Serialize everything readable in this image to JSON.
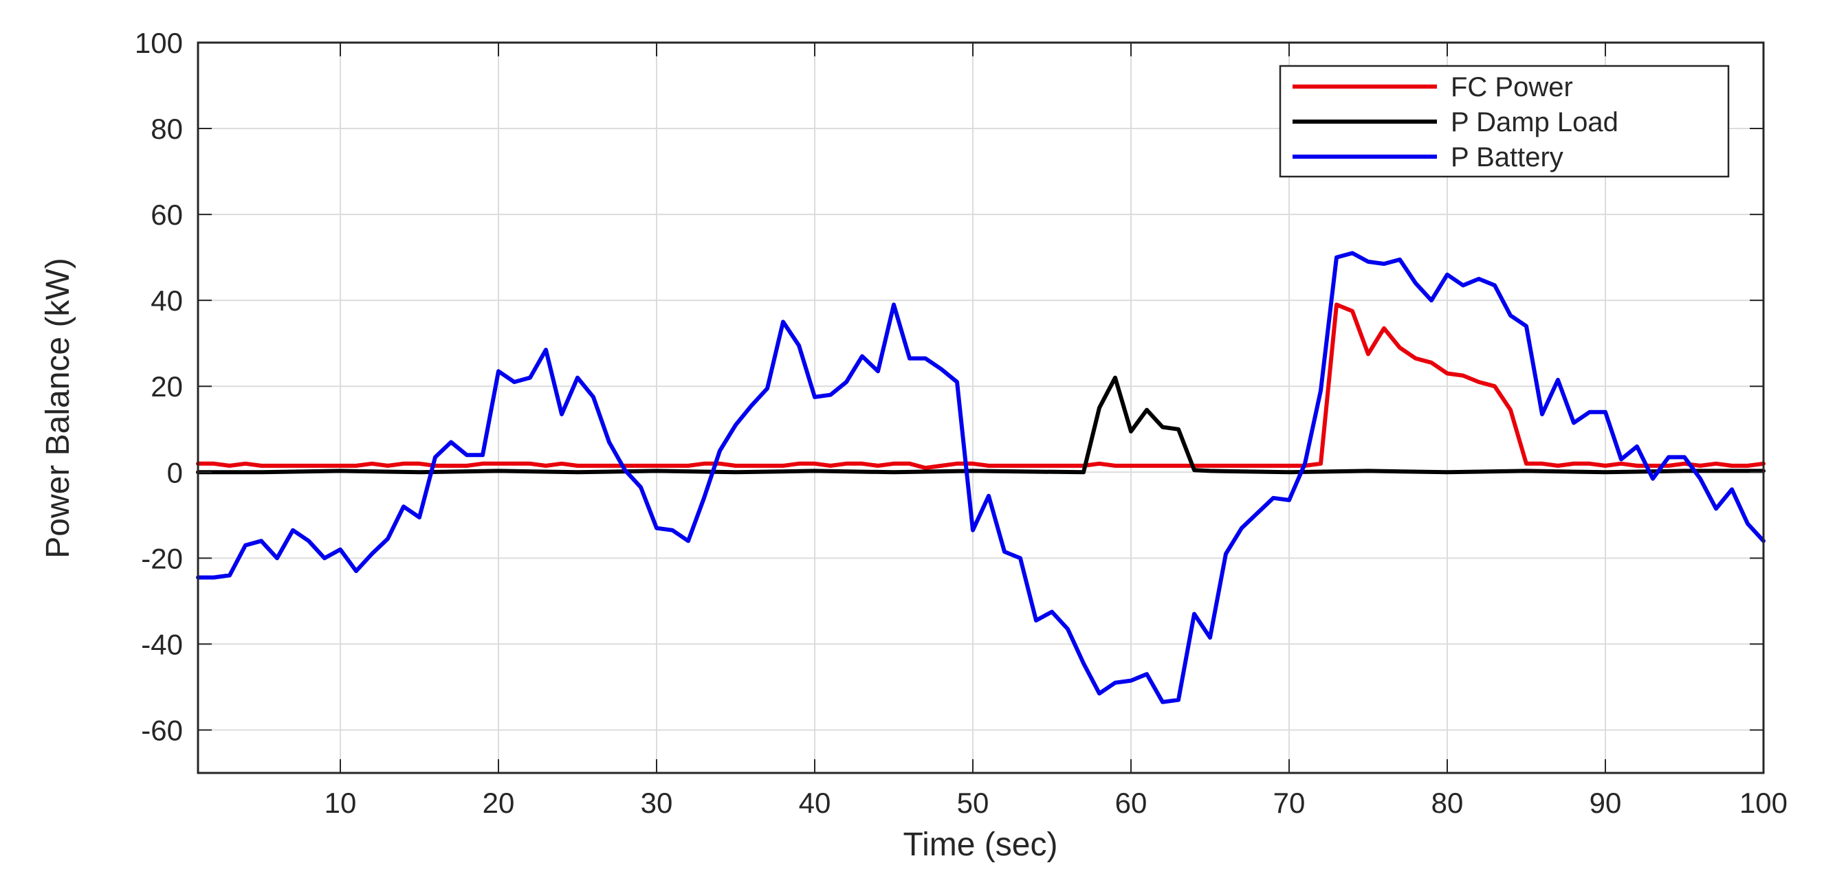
{
  "chart_data": {
    "type": "line",
    "title": "",
    "xlabel": "Time (sec)",
    "ylabel": "Power Balance (kW)",
    "xlim": [
      1,
      100
    ],
    "ylim": [
      -70,
      100
    ],
    "xticks": [
      10,
      20,
      30,
      40,
      50,
      60,
      70,
      80,
      90,
      100
    ],
    "xtick_labels": [
      "10",
      "20",
      "30",
      "40",
      "50",
      "60",
      "70",
      "80",
      "90",
      "100"
    ],
    "yticks": [
      -60,
      -40,
      -20,
      0,
      20,
      40,
      60,
      80,
      100
    ],
    "ytick_labels": [
      "-60",
      "-40",
      "-20",
      "0",
      "20",
      "40",
      "60",
      "80",
      "100"
    ],
    "grid": true,
    "legend_position": "top-right",
    "series": [
      {
        "name": "FC Power",
        "color": "#e8000b",
        "points": [
          [
            1,
            2
          ],
          [
            2,
            2
          ],
          [
            3,
            1.5
          ],
          [
            4,
            2
          ],
          [
            5,
            1.5
          ],
          [
            6,
            1.5
          ],
          [
            7,
            1.5
          ],
          [
            8,
            1.5
          ],
          [
            9,
            1.5
          ],
          [
            10,
            1.5
          ],
          [
            11,
            1.5
          ],
          [
            12,
            2
          ],
          [
            13,
            1.5
          ],
          [
            14,
            2
          ],
          [
            15,
            2
          ],
          [
            16,
            1.5
          ],
          [
            17,
            1.5
          ],
          [
            18,
            1.5
          ],
          [
            19,
            2
          ],
          [
            20,
            2
          ],
          [
            21,
            2
          ],
          [
            22,
            2
          ],
          [
            23,
            1.5
          ],
          [
            24,
            2
          ],
          [
            25,
            1.5
          ],
          [
            26,
            1.5
          ],
          [
            27,
            1.5
          ],
          [
            28,
            1.5
          ],
          [
            29,
            1.5
          ],
          [
            30,
            1.5
          ],
          [
            31,
            1.5
          ],
          [
            32,
            1.5
          ],
          [
            33,
            2
          ],
          [
            34,
            2
          ],
          [
            35,
            1.5
          ],
          [
            36,
            1.5
          ],
          [
            37,
            1.5
          ],
          [
            38,
            1.5
          ],
          [
            39,
            2
          ],
          [
            40,
            2
          ],
          [
            41,
            1.5
          ],
          [
            42,
            2
          ],
          [
            43,
            2
          ],
          [
            44,
            1.5
          ],
          [
            45,
            2
          ],
          [
            46,
            2
          ],
          [
            47,
            1
          ],
          [
            48,
            1.5
          ],
          [
            49,
            2
          ],
          [
            50,
            2
          ],
          [
            51,
            1.5
          ],
          [
            52,
            1.5
          ],
          [
            53,
            1.5
          ],
          [
            54,
            1.5
          ],
          [
            55,
            1.5
          ],
          [
            56,
            1.5
          ],
          [
            57,
            1.5
          ],
          [
            58,
            2
          ],
          [
            59,
            1.5
          ],
          [
            60,
            1.5
          ],
          [
            61,
            1.5
          ],
          [
            62,
            1.5
          ],
          [
            63,
            1.5
          ],
          [
            64,
            1.5
          ],
          [
            65,
            1.5
          ],
          [
            66,
            1.5
          ],
          [
            67,
            1.5
          ],
          [
            68,
            1.5
          ],
          [
            69,
            1.5
          ],
          [
            70,
            1.5
          ],
          [
            71,
            1.5
          ],
          [
            72,
            2
          ],
          [
            73,
            39
          ],
          [
            74,
            37.5
          ],
          [
            75,
            27.5
          ],
          [
            76,
            33.5
          ],
          [
            77,
            29
          ],
          [
            78,
            26.5
          ],
          [
            79,
            25.5
          ],
          [
            80,
            23
          ],
          [
            81,
            22.5
          ],
          [
            82,
            21
          ],
          [
            83,
            20
          ],
          [
            84,
            14.5
          ],
          [
            85,
            2
          ],
          [
            86,
            2
          ],
          [
            87,
            1.5
          ],
          [
            88,
            2
          ],
          [
            89,
            2
          ],
          [
            90,
            1.5
          ],
          [
            91,
            2
          ],
          [
            92,
            1.5
          ],
          [
            93,
            1.5
          ],
          [
            94,
            1.5
          ],
          [
            95,
            2
          ],
          [
            96,
            1.5
          ],
          [
            97,
            2
          ],
          [
            98,
            1.5
          ],
          [
            99,
            1.5
          ],
          [
            100,
            2
          ]
        ]
      },
      {
        "name": "P Damp Load",
        "color": "#000000",
        "points": [
          [
            1,
            0
          ],
          [
            5,
            0
          ],
          [
            10,
            0.3
          ],
          [
            15,
            0
          ],
          [
            20,
            0.3
          ],
          [
            25,
            0
          ],
          [
            30,
            0.3
          ],
          [
            35,
            0
          ],
          [
            40,
            0.3
          ],
          [
            45,
            0
          ],
          [
            50,
            0.3
          ],
          [
            57,
            0
          ],
          [
            58,
            15
          ],
          [
            59,
            22
          ],
          [
            60,
            9.5
          ],
          [
            61,
            14.5
          ],
          [
            62,
            10.5
          ],
          [
            63,
            10
          ],
          [
            64,
            0.5
          ],
          [
            65,
            0.3
          ],
          [
            70,
            0
          ],
          [
            75,
            0.3
          ],
          [
            80,
            0
          ],
          [
            85,
            0.3
          ],
          [
            90,
            0
          ],
          [
            95,
            0.3
          ],
          [
            100,
            0.3
          ]
        ]
      },
      {
        "name": "P Battery",
        "color": "#0000ee",
        "points": [
          [
            1,
            -24.5
          ],
          [
            2,
            -24.5
          ],
          [
            3,
            -24
          ],
          [
            4,
            -17
          ],
          [
            5,
            -16
          ],
          [
            6,
            -20
          ],
          [
            7,
            -13.5
          ],
          [
            8,
            -16
          ],
          [
            9,
            -20
          ],
          [
            10,
            -18
          ],
          [
            11,
            -23
          ],
          [
            12,
            -19
          ],
          [
            13,
            -15.5
          ],
          [
            14,
            -8
          ],
          [
            15,
            -10.5
          ],
          [
            16,
            3.5
          ],
          [
            17,
            7
          ],
          [
            18,
            4
          ],
          [
            19,
            4
          ],
          [
            20,
            23.5
          ],
          [
            21,
            21
          ],
          [
            22,
            22
          ],
          [
            23,
            28.5
          ],
          [
            24,
            13.5
          ],
          [
            25,
            22
          ],
          [
            26,
            17.5
          ],
          [
            27,
            7
          ],
          [
            28,
            0.5
          ],
          [
            29,
            -3.5
          ],
          [
            30,
            -13
          ],
          [
            31,
            -13.5
          ],
          [
            32,
            -16
          ],
          [
            33,
            -6
          ],
          [
            34,
            5
          ],
          [
            35,
            11
          ],
          [
            36,
            15.5
          ],
          [
            37,
            19.5
          ],
          [
            38,
            35
          ],
          [
            39,
            29.5
          ],
          [
            40,
            17.5
          ],
          [
            41,
            18
          ],
          [
            42,
            21
          ],
          [
            43,
            27
          ],
          [
            44,
            23.5
          ],
          [
            45,
            39
          ],
          [
            46,
            26.5
          ],
          [
            47,
            26.5
          ],
          [
            48,
            24
          ],
          [
            49,
            21
          ],
          [
            50,
            -13.5
          ],
          [
            51,
            -5.5
          ],
          [
            52,
            -18.5
          ],
          [
            53,
            -20
          ],
          [
            54,
            -34.5
          ],
          [
            55,
            -32.5
          ],
          [
            56,
            -36.5
          ],
          [
            57,
            -44.5
          ],
          [
            58,
            -51.5
          ],
          [
            59,
            -49
          ],
          [
            60,
            -48.5
          ],
          [
            61,
            -47
          ],
          [
            62,
            -53.5
          ],
          [
            63,
            -53
          ],
          [
            64,
            -33
          ],
          [
            65,
            -38.5
          ],
          [
            66,
            -19
          ],
          [
            67,
            -13
          ],
          [
            68,
            -9.5
          ],
          [
            69,
            -6
          ],
          [
            70,
            -6.5
          ],
          [
            71,
            2
          ],
          [
            72,
            19
          ],
          [
            73,
            50
          ],
          [
            74,
            51
          ],
          [
            75,
            49
          ],
          [
            76,
            48.5
          ],
          [
            77,
            49.5
          ],
          [
            78,
            44
          ],
          [
            79,
            40
          ],
          [
            80,
            46
          ],
          [
            81,
            43.5
          ],
          [
            82,
            45
          ],
          [
            83,
            43.5
          ],
          [
            84,
            36.5
          ],
          [
            85,
            34
          ],
          [
            86,
            13.5
          ],
          [
            87,
            21.5
          ],
          [
            88,
            11.5
          ],
          [
            89,
            14
          ],
          [
            90,
            14
          ],
          [
            91,
            3
          ],
          [
            92,
            6
          ],
          [
            93,
            -1.5
          ],
          [
            94,
            3.5
          ],
          [
            95,
            3.5
          ],
          [
            96,
            -1.5
          ],
          [
            97,
            -8.5
          ],
          [
            98,
            -4
          ],
          [
            99,
            -12
          ],
          [
            100,
            -16
          ]
        ]
      }
    ]
  }
}
